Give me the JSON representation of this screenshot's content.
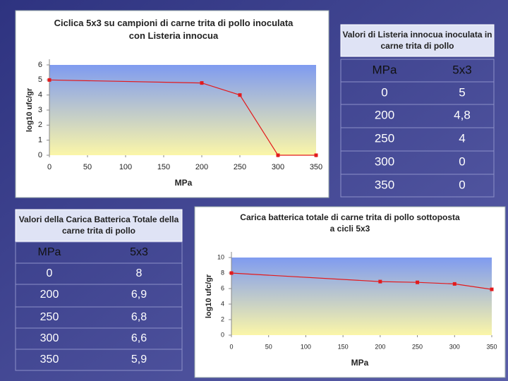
{
  "chart_data": [
    {
      "type": "line",
      "title": "Ciclica 5x3 su campioni di carne trita di pollo inoculata con Listeria innocua",
      "x_label": "MPa",
      "y_label": "log10 ufc/gr",
      "x": [
        0,
        200,
        250,
        300,
        350
      ],
      "series": [
        {
          "color": "#e31a1c",
          "values": [
            5,
            4.8,
            4,
            0,
            0
          ]
        }
      ],
      "xlim": [
        0,
        350
      ],
      "xticks": [
        0,
        50,
        100,
        150,
        200,
        250,
        300,
        350
      ],
      "ylim": [
        0,
        6
      ],
      "yticks": [
        0,
        1,
        2,
        3,
        4,
        5,
        6
      ]
    },
    {
      "type": "line",
      "title": "Carica batterica totale di carne trita di pollo sottoposta a cicli 5x3",
      "x_label": "MPa",
      "y_label": "log10 ufc/gr",
      "x": [
        0,
        200,
        250,
        300,
        350
      ],
      "series": [
        {
          "color": "#e31a1c",
          "values": [
            8,
            6.9,
            6.8,
            6.6,
            5.9
          ]
        }
      ],
      "xlim": [
        0,
        350
      ],
      "xticks": [
        0,
        50,
        100,
        150,
        200,
        250,
        300,
        350
      ],
      "ylim": [
        0,
        10
      ],
      "yticks": [
        0,
        2,
        4,
        6,
        8,
        10
      ]
    }
  ],
  "tables": [
    {
      "title": "Valori di Listeria innocua inoculata in carne trita di pollo",
      "header": [
        "MPa",
        "5x3"
      ],
      "rows": [
        [
          "0",
          "5"
        ],
        [
          "200",
          "4,8"
        ],
        [
          "250",
          "4"
        ],
        [
          "300",
          "0"
        ],
        [
          "350",
          "0"
        ]
      ]
    },
    {
      "title": "Valori della Carica Batterica Totale della carne trita di pollo",
      "header": [
        "MPa",
        "5x3"
      ],
      "rows": [
        [
          "0",
          "8"
        ],
        [
          "200",
          "6,9"
        ],
        [
          "250",
          "6,8"
        ],
        [
          "300",
          "6,6"
        ],
        [
          "350",
          "5,9"
        ]
      ]
    }
  ]
}
